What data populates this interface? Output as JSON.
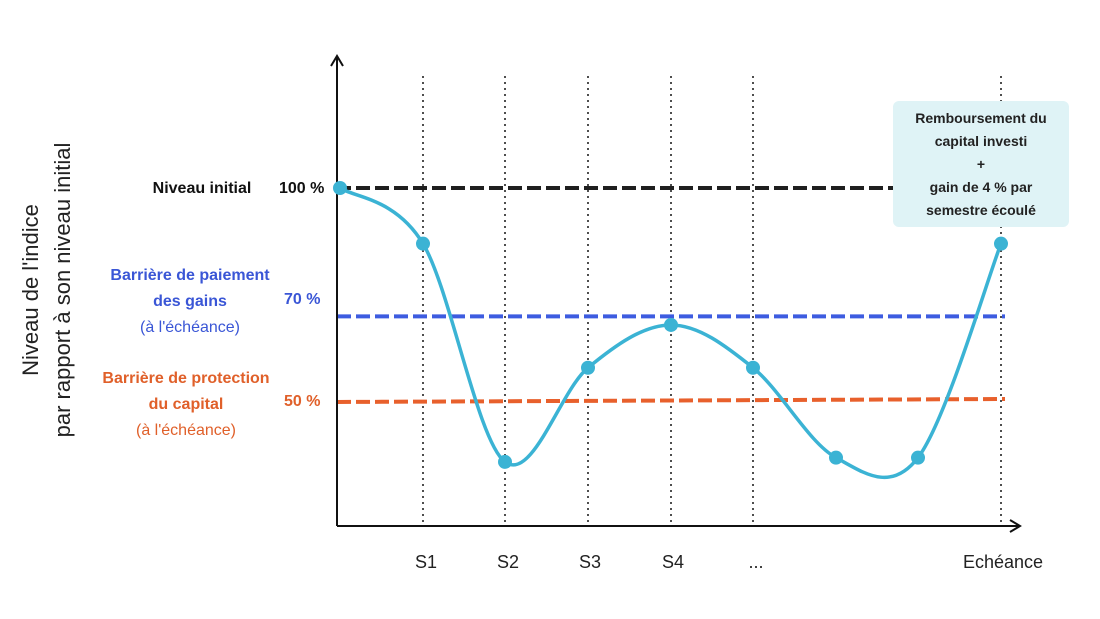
{
  "chart_data": {
    "type": "line",
    "ylabel_line1": "Niveau de l'indice",
    "ylabel_line2": "par rapport à son niveau initial",
    "x_ticks": [
      "S1",
      "S2",
      "S3",
      "S4",
      "...",
      "Echéance"
    ],
    "reference_lines": [
      {
        "label": "Niveau initial",
        "sublabel": "",
        "value_label": "100 %",
        "value": 100,
        "color": "#1f1f1f",
        "text_color": "#111111"
      },
      {
        "label": "Barrière de paiement des gains",
        "sublabel": "(à l'échéance)",
        "value_label": "70 %",
        "value": 70,
        "color": "#3d5ce0",
        "text_color": "#3a56d6"
      },
      {
        "label": "Barrière de protection du capital",
        "sublabel": "(à l'échéance)",
        "value_label": "50 %",
        "value": 50,
        "color": "#e8602c",
        "text_color": "#e0602a"
      }
    ],
    "series": [
      {
        "color": "#3bb3d4",
        "x": [
          0,
          1,
          2,
          3,
          4,
          5,
          6,
          7,
          8
        ],
        "y": [
          100,
          87,
          36,
          58,
          68,
          58,
          37,
          37,
          87
        ]
      }
    ],
    "callout": {
      "line1": "Remboursement du",
      "line2": "capital investi",
      "line3": "+",
      "line4": "gain de 4 % par",
      "line5": "semestre écoulé"
    }
  }
}
